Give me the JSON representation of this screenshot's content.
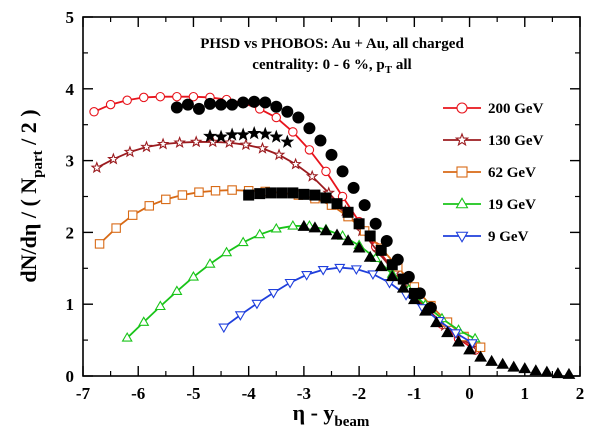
{
  "chart_data": {
    "type": "line",
    "title_lines": [
      {
        "parts": [
          {
            "text": "PHSD vs PHOBOS: Au + Au, all charged",
            "sub": false
          }
        ]
      },
      {
        "parts": [
          {
            "text": "centrality: 0 - 6 %, p",
            "sub": false
          },
          {
            "text": "T",
            "sub": true
          },
          {
            "text": " all",
            "sub": false
          }
        ]
      }
    ],
    "xlabel": {
      "main": "η - y",
      "sub": "beam"
    },
    "ylabel": {
      "pre": "dN/dη / ( N",
      "sub": "part",
      "post": " / 2 )"
    },
    "xlim": [
      -7,
      2
    ],
    "ylim": [
      0,
      5
    ],
    "xticks": [
      -7,
      -6,
      -5,
      -4,
      -3,
      -2,
      -1,
      0,
      1,
      2
    ],
    "yticks": [
      0,
      1,
      2,
      3,
      4,
      5
    ],
    "grid": false,
    "legend_position": "right",
    "series": [
      {
        "name": "200 GeV",
        "color": "#e8141c",
        "marker": "circle",
        "x": [
          -6.8,
          -6.5,
          -6.2,
          -5.9,
          -5.6,
          -5.3,
          -5.0,
          -4.7,
          -4.4,
          -4.1,
          -3.8,
          -3.5,
          -3.2,
          -2.9,
          -2.6,
          -2.3,
          -2.0,
          -1.7,
          -1.4,
          -1.1,
          -0.8,
          -0.5,
          -0.2,
          0.1
        ],
        "y": [
          3.68,
          3.78,
          3.84,
          3.88,
          3.89,
          3.89,
          3.89,
          3.88,
          3.85,
          3.8,
          3.72,
          3.6,
          3.4,
          3.15,
          2.85,
          2.5,
          2.15,
          1.8,
          1.5,
          1.2,
          0.95,
          0.72,
          0.52,
          0.36
        ]
      },
      {
        "name": "130 GeV",
        "color": "#9b1b1f",
        "marker": "star",
        "x": [
          -6.75,
          -6.45,
          -6.15,
          -5.85,
          -5.55,
          -5.25,
          -4.95,
          -4.65,
          -4.35,
          -4.05,
          -3.75,
          -3.45,
          -3.15,
          -2.85,
          -2.55,
          -2.25,
          -1.95,
          -1.65,
          -1.35,
          -1.05,
          -0.75,
          -0.45,
          -0.15,
          0.15
        ],
        "y": [
          2.9,
          3.02,
          3.12,
          3.19,
          3.23,
          3.25,
          3.26,
          3.26,
          3.25,
          3.22,
          3.17,
          3.08,
          2.95,
          2.78,
          2.55,
          2.3,
          2.02,
          1.72,
          1.44,
          1.16,
          0.92,
          0.7,
          0.52,
          0.38
        ]
      },
      {
        "name": "62 GeV",
        "color": "#d86a16",
        "marker": "square",
        "x": [
          -6.7,
          -6.4,
          -6.1,
          -5.8,
          -5.5,
          -5.2,
          -4.9,
          -4.6,
          -4.3,
          -4.0,
          -3.7,
          -3.4,
          -3.1,
          -2.8,
          -2.5,
          -2.2,
          -1.9,
          -1.6,
          -1.3,
          -1.0,
          -0.7,
          -0.4,
          -0.1,
          0.2
        ],
        "y": [
          1.84,
          2.06,
          2.24,
          2.37,
          2.46,
          2.52,
          2.56,
          2.58,
          2.59,
          2.58,
          2.57,
          2.55,
          2.52,
          2.47,
          2.38,
          2.22,
          2.02,
          1.78,
          1.52,
          1.24,
          0.98,
          0.75,
          0.55,
          0.4
        ]
      },
      {
        "name": "19 GeV",
        "color": "#19c419",
        "marker": "triangle-up",
        "x": [
          -6.2,
          -5.9,
          -5.6,
          -5.3,
          -5.0,
          -4.7,
          -4.4,
          -4.1,
          -3.8,
          -3.5,
          -3.2,
          -2.9,
          -2.6,
          -2.3,
          -2.0,
          -1.7,
          -1.4,
          -1.1,
          -0.8,
          -0.5,
          -0.2,
          0.1
        ],
        "y": [
          0.53,
          0.75,
          0.97,
          1.18,
          1.38,
          1.56,
          1.72,
          1.86,
          1.97,
          2.05,
          2.09,
          2.09,
          2.04,
          1.95,
          1.82,
          1.64,
          1.42,
          1.2,
          0.99,
          0.8,
          0.64,
          0.52
        ]
      },
      {
        "name": "9 GeV",
        "color": "#1f3fdc",
        "marker": "triangle-down",
        "x": [
          -4.45,
          -4.15,
          -3.85,
          -3.55,
          -3.25,
          -2.95,
          -2.65,
          -2.35,
          -2.05,
          -1.75,
          -1.45,
          -1.15,
          -0.85,
          -0.55,
          -0.25,
          0.05
        ],
        "y": [
          0.68,
          0.85,
          1.01,
          1.16,
          1.3,
          1.41,
          1.48,
          1.51,
          1.49,
          1.42,
          1.3,
          1.13,
          0.95,
          0.77,
          0.6,
          0.46
        ]
      }
    ],
    "data_points": [
      {
        "marker": "circle",
        "color": "#000000",
        "x": [
          -5.3,
          -5.1,
          -4.9,
          -4.7,
          -4.5,
          -4.3,
          -4.1,
          -3.9,
          -3.7,
          -3.5,
          -3.3,
          -3.1,
          -2.9,
          -2.7,
          -2.5,
          -2.3,
          -2.1,
          -1.9,
          -1.7,
          -1.5,
          -1.3,
          -1.1,
          -0.9,
          -0.7
        ],
        "y": [
          3.74,
          3.78,
          3.72,
          3.79,
          3.78,
          3.78,
          3.81,
          3.82,
          3.81,
          3.75,
          3.68,
          3.6,
          3.45,
          3.28,
          3.08,
          2.85,
          2.62,
          2.38,
          2.12,
          1.88,
          1.62,
          1.38,
          1.15,
          0.95
        ]
      },
      {
        "marker": "star",
        "color": "#000000",
        "x": [
          -4.7,
          -4.5,
          -4.3,
          -4.1,
          -3.9,
          -3.7,
          -3.5,
          -3.3
        ],
        "y": [
          3.34,
          3.33,
          3.36,
          3.36,
          3.38,
          3.37,
          3.33,
          3.26
        ]
      },
      {
        "marker": "square",
        "color": "#000000",
        "x": [
          -4.0,
          -3.8,
          -3.6,
          -3.4,
          -3.2,
          -3.0,
          -2.8,
          -2.6,
          -2.4,
          -2.2,
          -2.0,
          -1.8,
          -1.6,
          -1.4,
          -1.2,
          -1.0
        ],
        "y": [
          2.52,
          2.54,
          2.55,
          2.55,
          2.55,
          2.53,
          2.52,
          2.48,
          2.4,
          2.28,
          2.12,
          1.95,
          1.75,
          1.55,
          1.35,
          1.15
        ]
      },
      {
        "marker": "triangle-up",
        "color": "#000000",
        "x": [
          -3.0,
          -2.8,
          -2.6,
          -2.4,
          -2.2,
          -2.0,
          -1.8,
          -1.6,
          -1.4,
          -1.2,
          -1.0,
          -0.8,
          -0.6,
          -0.4,
          -0.2,
          0.0,
          0.2,
          0.4,
          0.6,
          0.8,
          1.0,
          1.2,
          1.4,
          1.6,
          1.8
        ],
        "y": [
          2.08,
          2.06,
          2.02,
          1.96,
          1.88,
          1.78,
          1.65,
          1.52,
          1.38,
          1.22,
          1.06,
          0.9,
          0.74,
          0.6,
          0.47,
          0.36,
          0.26,
          0.2,
          0.16,
          0.12,
          0.1,
          0.07,
          0.05,
          0.03,
          0.02
        ]
      }
    ]
  }
}
